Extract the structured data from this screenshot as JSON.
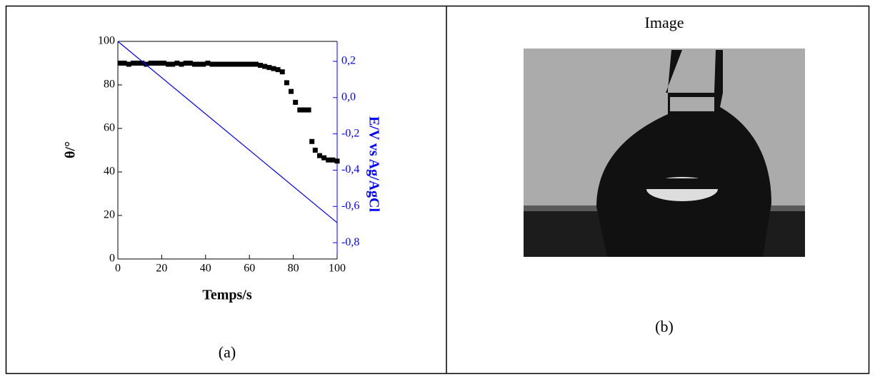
{
  "table": {
    "cells": [
      {
        "chart_data": {
          "type": "scatter",
          "x_label": "Temps/s",
          "y_label": "θ/°",
          "y2_label": "E/V vs Ag/AgCl",
          "xlim": [
            0,
            100
          ],
          "xticks": [
            0,
            20,
            40,
            60,
            80,
            100
          ],
          "ylim": [
            0,
            100
          ],
          "yticks": [
            0,
            20,
            40,
            60,
            80,
            100
          ],
          "y2lim": [
            -0.89,
            0.31
          ],
          "y2ticks": [
            {
              "value": 0.2,
              "label": "0,2"
            },
            {
              "value": 0.0,
              "label": "0,0"
            },
            {
              "value": -0.2,
              "label": "-0,2"
            },
            {
              "value": -0.4,
              "label": "-0,4"
            },
            {
              "value": -0.6,
              "label": "-0,6"
            },
            {
              "value": -0.8,
              "label": "-0,8"
            }
          ],
          "y2_color": "#0000ff",
          "series": [
            {
              "mark": "square",
              "color": "#000000",
              "x": [
                1,
                3,
                5,
                7,
                9,
                11,
                13,
                15,
                17,
                19,
                21,
                23,
                25,
                27,
                29,
                31,
                33,
                35,
                37,
                39,
                41,
                43,
                45,
                47,
                49,
                51,
                53,
                55,
                57,
                59,
                61,
                63,
                65,
                67,
                69,
                71,
                73,
                75,
                77,
                79,
                81,
                83,
                85,
                87,
                88.5,
                90,
                92,
                94,
                96,
                98,
                100
              ],
              "values": [
                90,
                90,
                89.5,
                90,
                90,
                90,
                89.5,
                90,
                90,
                90,
                90,
                89.5,
                89.5,
                90,
                89.5,
                90,
                90,
                89.5,
                89.5,
                89.5,
                90,
                89.5,
                89.5,
                89.5,
                89.5,
                89.5,
                89.5,
                89.5,
                89.5,
                89.5,
                89.5,
                89.5,
                89,
                88.5,
                88,
                87.5,
                87,
                86,
                81,
                77,
                72,
                68.5,
                68.5,
                68.5,
                54,
                50,
                47.5,
                46.5,
                45.5,
                45.5,
                45
              ]
            },
            {
              "mark": "line",
              "color": "#0000ff",
              "axis": "y2",
              "x": [
                0,
                100
              ],
              "values": [
                0.31,
                -0.69
              ]
            }
          ]
        },
        "caption": "(a)"
      },
      {
        "title": "Image",
        "caption": "(b)"
      }
    ]
  }
}
